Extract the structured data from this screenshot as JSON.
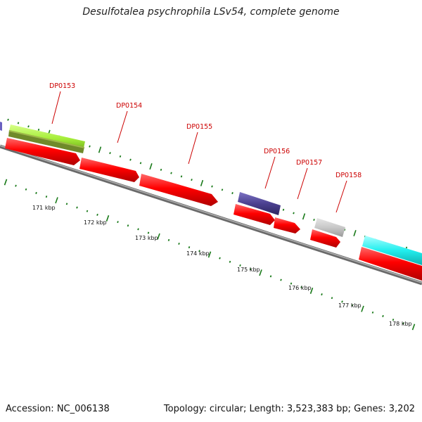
{
  "title": "Desulfotalea psychrophila LSv54, complete genome",
  "footer": {
    "accession": "Accession: NC_006138",
    "summary": "Topology: circular; Length: 3,523,383 bp; Genes: 3,202"
  },
  "genes": [
    {
      "id": "DP0153"
    },
    {
      "id": "DP0154"
    },
    {
      "id": "DP0155"
    },
    {
      "id": "DP0156"
    },
    {
      "id": "DP0157"
    },
    {
      "id": "DP0158"
    }
  ],
  "kbp_labels": [
    "171 kbp",
    "172 kbp",
    "173 kbp",
    "174 kbp",
    "175 kbp",
    "176 kbp",
    "177 kbp",
    "178 kbp"
  ],
  "colors": {
    "cds": "#ff0000",
    "backbone": "#8a8a8a",
    "tick": "#1a7a1a",
    "label": "#cc0000",
    "lime": "#a6ee3a",
    "olive": "#6f8a2a",
    "navy": "#4b4090",
    "gray_feature": "#c8c8c8",
    "cyan": "#22eeee"
  }
}
